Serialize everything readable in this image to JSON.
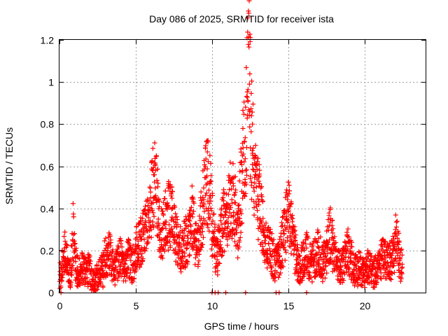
{
  "chart_data": {
    "type": "scatter",
    "title": "Day 086 of 2025, SRMTID for receiver ista",
    "xlabel": "GPS time / hours",
    "ylabel": "SRMTID / TECUs",
    "xlim": [
      0,
      24
    ],
    "ylim": [
      0,
      1.2
    ],
    "x_ticks": [
      0,
      5,
      10,
      15,
      20
    ],
    "x_tick_labels": [
      "0",
      "5",
      "10",
      "15",
      "20"
    ],
    "y_ticks": [
      0,
      0.2,
      0.4,
      0.6,
      0.8,
      1.0,
      1.2
    ],
    "y_tick_labels": [
      "0",
      "0.2",
      "0.4",
      "0.6",
      "0.8",
      "1",
      "1.2"
    ],
    "grid": true,
    "marker": "+",
    "series": [
      {
        "name": "SRMTID",
        "color": "#ff0000",
        "x_start": 0.0,
        "x_step": 0.15,
        "values": [
          0.06,
          0.13,
          0.2,
          0.17,
          0.12,
          0.09,
          0.3,
          0.14,
          0.1,
          0.09,
          0.12,
          0.1,
          0.09,
          0.12,
          0.07,
          0.05,
          0.07,
          0.08,
          0.11,
          0.1,
          0.17,
          0.18,
          0.19,
          0.14,
          0.11,
          0.13,
          0.16,
          0.17,
          0.13,
          0.12,
          0.16,
          0.14,
          0.12,
          0.2,
          0.21,
          0.24,
          0.27,
          0.3,
          0.31,
          0.35,
          0.45,
          0.52,
          0.48,
          0.4,
          0.3,
          0.28,
          0.33,
          0.35,
          0.38,
          0.36,
          0.3,
          0.25,
          0.22,
          0.2,
          0.21,
          0.24,
          0.25,
          0.3,
          0.37,
          0.28,
          0.22,
          0.21,
          0.37,
          0.44,
          0.5,
          0.55,
          0.45,
          0.28,
          0.22,
          0.18,
          0.24,
          0.3,
          0.35,
          0.38,
          0.42,
          0.45,
          0.44,
          0.36,
          0.3,
          0.45,
          0.6,
          0.67,
          0.9,
          1.05,
          0.72,
          0.56,
          0.48,
          0.43,
          0.4,
          0.3,
          0.24,
          0.22,
          0.2,
          0.18,
          0.15,
          0.13,
          0.17,
          0.21,
          0.26,
          0.33,
          0.38,
          0.32,
          0.25,
          0.2,
          0.15,
          0.12,
          0.14,
          0.17,
          0.2,
          0.16,
          0.13,
          0.15,
          0.18,
          0.2,
          0.17,
          0.14,
          0.16,
          0.2,
          0.28,
          0.24,
          0.18,
          0.15,
          0.13,
          0.12,
          0.13,
          0.18,
          0.21,
          0.17,
          0.14,
          0.11,
          0.1,
          0.12,
          0.1,
          0.09,
          0.1,
          0.13,
          0.11,
          0.09,
          0.1,
          0.12,
          0.14,
          0.18,
          0.16,
          0.15,
          0.14,
          0.15,
          0.18,
          0.26,
          0.2,
          0.12,
          0.14
        ]
      }
    ],
    "zero_points_x": [
      0.1,
      10.0,
      10.2,
      10.4,
      10.9,
      12.2,
      14.2,
      14.4,
      16.2
    ]
  }
}
